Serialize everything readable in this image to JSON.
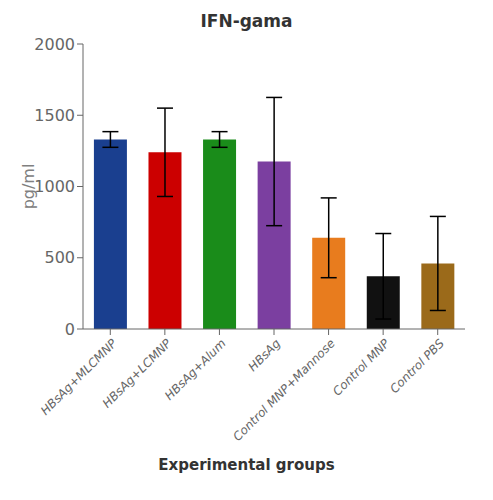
{
  "chart_data": {
    "type": "bar",
    "title": "IFN-gama",
    "xlabel": "Experimental groups",
    "ylabel": "pg/ml",
    "categories": [
      "HBsAg+MLCMNP",
      "HBsAg+LCMNP",
      "HBsAg+Alum",
      "HBsAg",
      "Control MNP+Mannose",
      "Control MNP",
      "Control PBS"
    ],
    "values": [
      1330,
      1240,
      1330,
      1175,
      640,
      370,
      460
    ],
    "errors": [
      55,
      310,
      55,
      450,
      280,
      300,
      330
    ],
    "colors": [
      "#1a3f8f",
      "#cc0000",
      "#1a8c1a",
      "#7b3fa0",
      "#e87c1e",
      "#111111",
      "#9b6a1a"
    ],
    "ylim": [
      0,
      2000
    ],
    "yticks": [
      0,
      500,
      1000,
      1500,
      2000
    ],
    "grid": false
  }
}
